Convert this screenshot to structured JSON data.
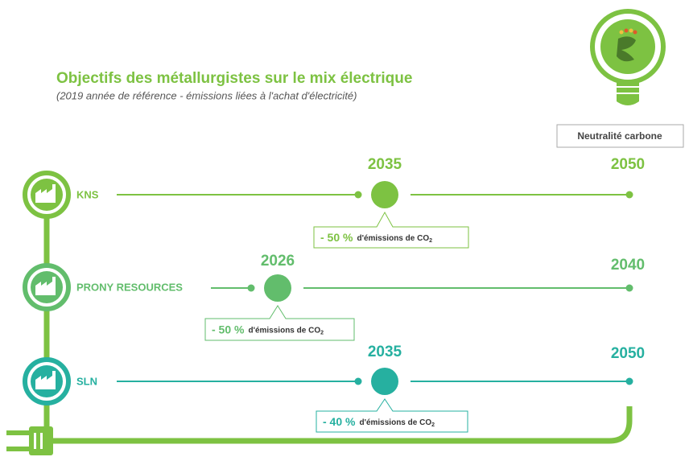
{
  "title": "Objectifs des métallurgistes sur le mix électrique",
  "subtitle": "(2019 année de référence  - émissions liées à l'achat d'électricité)",
  "badge": "Neutralité carbone",
  "rows": [
    {
      "name": "KNS",
      "milestone_year": "2035",
      "target_year": "2050",
      "reduction": "- 50 %",
      "reduction_text": "d'émissions de CO",
      "subscript": "2"
    },
    {
      "name": "PRONY RESOURCES",
      "milestone_year": "2026",
      "target_year": "2040",
      "reduction": "- 50 %",
      "reduction_text": "d'émissions de CO",
      "subscript": "2"
    },
    {
      "name": "SLN",
      "milestone_year": "2035",
      "target_year": "2050",
      "reduction": "- 40 %",
      "reduction_text": "d'émissions de CO",
      "subscript": "2"
    }
  ]
}
